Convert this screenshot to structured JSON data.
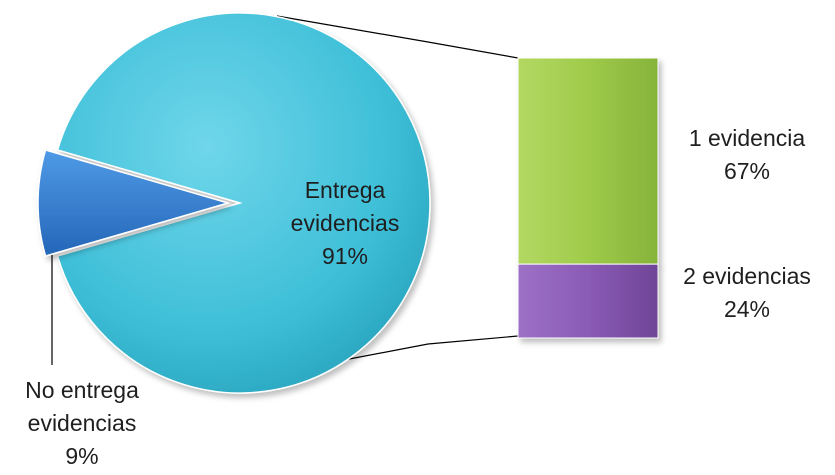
{
  "chart_data": {
    "type": "pie",
    "subtype": "bar-of-pie",
    "pie": {
      "slices": [
        {
          "label_lines": [
            "Entrega",
            "evidencias",
            "91%"
          ],
          "value": 91,
          "color": "#3ebfd8"
        },
        {
          "label_lines": [
            "No entrega",
            "evidencias",
            "9%"
          ],
          "value": 9,
          "color": "#2f7fd6",
          "exploded": true
        }
      ]
    },
    "bar": {
      "segments": [
        {
          "label_lines": [
            "1 evidencia",
            "67%"
          ],
          "value": 67,
          "color": "#9fcb4a"
        },
        {
          "label_lines": [
            "2 evidencias",
            "24%"
          ],
          "value": 24,
          "color": "#8a5bb5"
        }
      ]
    },
    "legend": "none",
    "title": ""
  }
}
